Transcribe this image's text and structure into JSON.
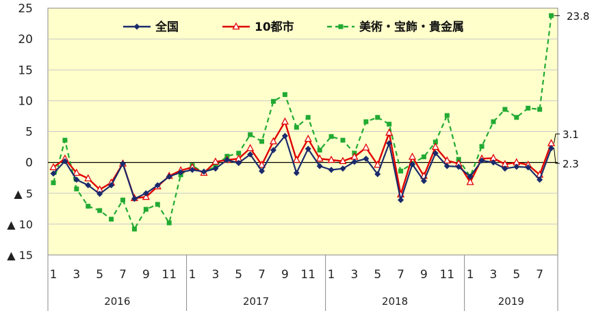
{
  "chart_data": {
    "type": "line",
    "ylim": [
      -15,
      25
    ],
    "y_ticks": [
      {
        "v": 25,
        "label": "25"
      },
      {
        "v": 20,
        "label": "20"
      },
      {
        "v": 15,
        "label": "15"
      },
      {
        "v": 10,
        "label": "10"
      },
      {
        "v": 5,
        "label": "5"
      },
      {
        "v": 0,
        "label": "0"
      },
      {
        "v": -5,
        "label": "▲ 5"
      },
      {
        "v": -10,
        "label": "▲ 10"
      },
      {
        "v": -15,
        "label": "▲ 15"
      }
    ],
    "month_labels": [
      "1",
      "",
      "3",
      "",
      "5",
      "",
      "7",
      "",
      "9",
      "",
      "11",
      "",
      "1",
      "",
      "3",
      "",
      "5",
      "",
      "7",
      "",
      "9",
      "",
      "11",
      "",
      "1",
      "",
      "3",
      "",
      "5",
      "",
      "7",
      "",
      "9",
      "",
      "11",
      "",
      "1",
      "",
      "3",
      "",
      "5",
      "",
      "7",
      ""
    ],
    "years": [
      {
        "label": "2016",
        "months": 12
      },
      {
        "label": "2017",
        "months": 12
      },
      {
        "label": "2018",
        "months": 12
      },
      {
        "label": "2019",
        "months": 8
      }
    ],
    "legend_position": "top",
    "series": [
      {
        "name": "全国",
        "color": "#1a2a6c",
        "marker": "diamond",
        "values": [
          -1.8,
          0.2,
          -2.8,
          -3.7,
          -5.1,
          -3.7,
          -0.2,
          -5.9,
          -5.0,
          -3.7,
          -2.3,
          -1.6,
          -1.2,
          -1.5,
          -1.0,
          0.4,
          -0.1,
          1.3,
          -1.4,
          2.0,
          4.3,
          -1.7,
          2.2,
          -0.6,
          -1.2,
          -1.0,
          0.1,
          0.6,
          -1.9,
          3.1,
          -6.1,
          -0.3,
          -3.0,
          1.5,
          -0.6,
          -0.7,
          -2.3,
          0.3,
          0.0,
          -1.0,
          -0.7,
          -0.8,
          -2.8,
          2.3
        ]
      },
      {
        "name": "10都市",
        "color": "#e00000",
        "marker": "triangle",
        "values": [
          -0.8,
          0.6,
          -1.7,
          -2.6,
          -4.4,
          -3.3,
          -0.2,
          -5.8,
          -5.6,
          -3.9,
          -2.2,
          -1.3,
          -0.8,
          -1.7,
          0.1,
          0.4,
          0.6,
          2.3,
          -0.4,
          3.4,
          6.6,
          0.4,
          3.8,
          0.6,
          0.4,
          0.2,
          0.9,
          2.4,
          -0.4,
          4.8,
          -5.2,
          0.9,
          -2.2,
          2.5,
          0.3,
          -0.2,
          -3.2,
          0.6,
          0.7,
          -0.3,
          0.0,
          -0.4,
          -2.0,
          3.1
        ]
      },
      {
        "name": "美術・宝飾・貴金属",
        "color": "#22aa33",
        "marker": "square",
        "dashed": true,
        "values": [
          -3.3,
          3.6,
          -4.3,
          -7.1,
          -7.8,
          -9.2,
          -6.1,
          -10.8,
          -7.6,
          -6.8,
          -9.8,
          -2.0,
          -0.5,
          -1.7,
          -0.6,
          1.0,
          1.5,
          4.5,
          3.4,
          9.9,
          11.0,
          5.7,
          7.3,
          2.0,
          4.2,
          3.6,
          1.5,
          6.6,
          7.3,
          6.2,
          -1.4,
          -0.2,
          0.9,
          3.3,
          7.6,
          0.5,
          -2.3,
          2.6,
          6.6,
          8.6,
          7.3,
          8.8,
          8.6,
          23.8
        ]
      }
    ],
    "end_labels": [
      "23.8",
      "3.1",
      "2.3"
    ]
  }
}
